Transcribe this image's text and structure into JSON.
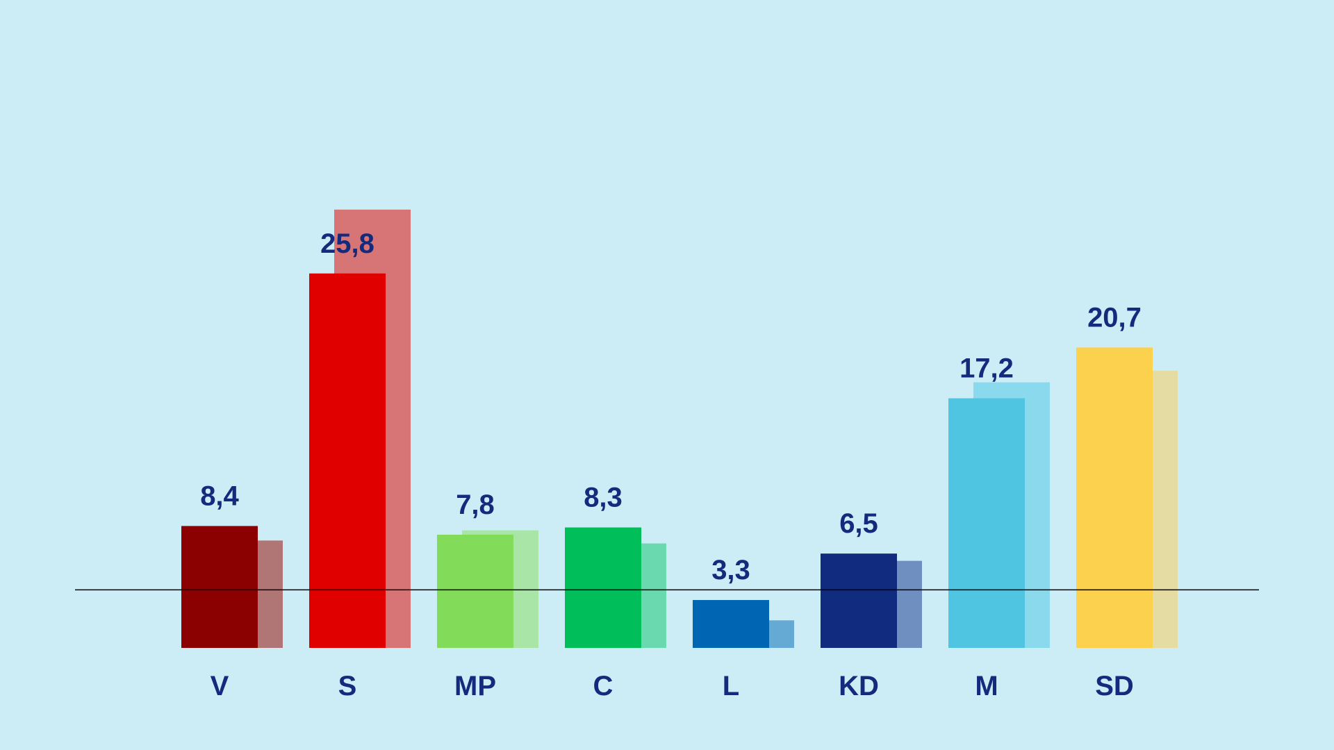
{
  "chart_data": {
    "type": "bar",
    "title": "",
    "xlabel": "",
    "ylabel": "",
    "ylim": [
      0,
      30
    ],
    "grid": false,
    "legend": "none",
    "threshold_line": 4,
    "categories": [
      "V",
      "S",
      "MP",
      "C",
      "L",
      "KD",
      "M",
      "SD"
    ],
    "series": [
      {
        "values": [
          8.4,
          25.8,
          7.8,
          8.3,
          3.3,
          6.5,
          17.2,
          20.7
        ],
        "labels": [
          "8,4",
          "25,8",
          "7,8",
          "8,3",
          "3,3",
          "6,5",
          "17,2",
          "20,7"
        ],
        "colors": [
          "#8b0000",
          "#e10000",
          "#82dc59",
          "#00be5a",
          "#0066b4",
          "#112c7e",
          "#50c5e2",
          "#fbd14e"
        ]
      },
      {
        "values": [
          7.4,
          30.2,
          8.1,
          7.2,
          1.9,
          6.0,
          18.3,
          19.1
        ],
        "colors": [
          "#b07575",
          "#d77475",
          "#a8e5a7",
          "#6bd9af",
          "#65a9d5",
          "#6f8fc0",
          "#8bd9ec",
          "#e4dca2"
        ]
      }
    ],
    "label_color": "#142b7d",
    "axis_color": "#000000"
  }
}
